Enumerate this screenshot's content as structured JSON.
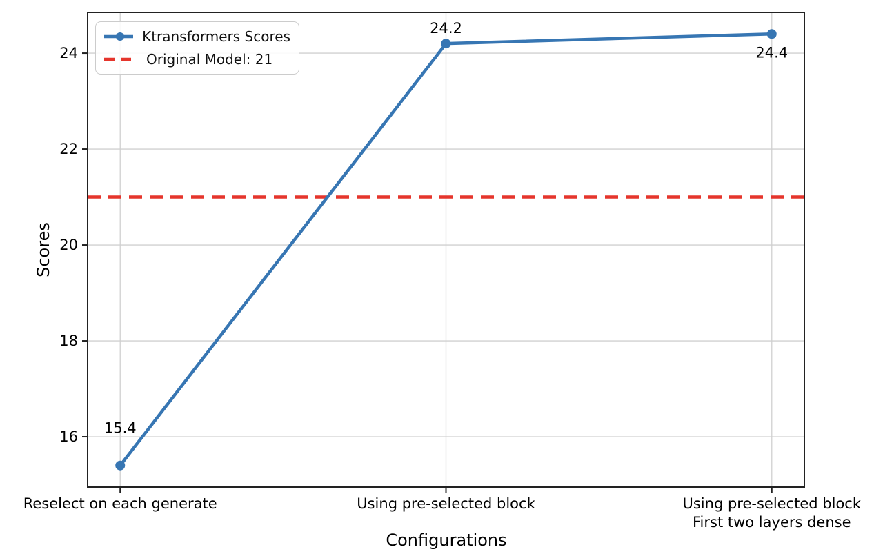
{
  "chart_data": {
    "type": "line",
    "title": "",
    "xlabel": "Configurations",
    "ylabel": "Scores",
    "categories": [
      "Reselect on each generate",
      "Using pre-selected block",
      "Using pre-selected block\nFirst two layers dense"
    ],
    "series": [
      {
        "name": "Ktransformers Scores",
        "values": [
          15.4,
          24.2,
          24.4
        ],
        "color": "#3776b3",
        "marker": "circle",
        "line_style": "solid"
      }
    ],
    "point_labels": [
      "15.4",
      "24.2",
      "24.4"
    ],
    "hline": {
      "value": 21,
      "label": "Original Model: 21",
      "color": "#e5352c",
      "line_style": "dashed"
    },
    "yticks": [
      16,
      18,
      20,
      22,
      24
    ],
    "ylim": [
      14.95,
      24.85
    ],
    "grid": true,
    "legend_position": "upper left",
    "colors": {
      "grid": "#d0d0d0",
      "spine": "#222222",
      "text": "#000000",
      "background": "#ffffff"
    }
  }
}
